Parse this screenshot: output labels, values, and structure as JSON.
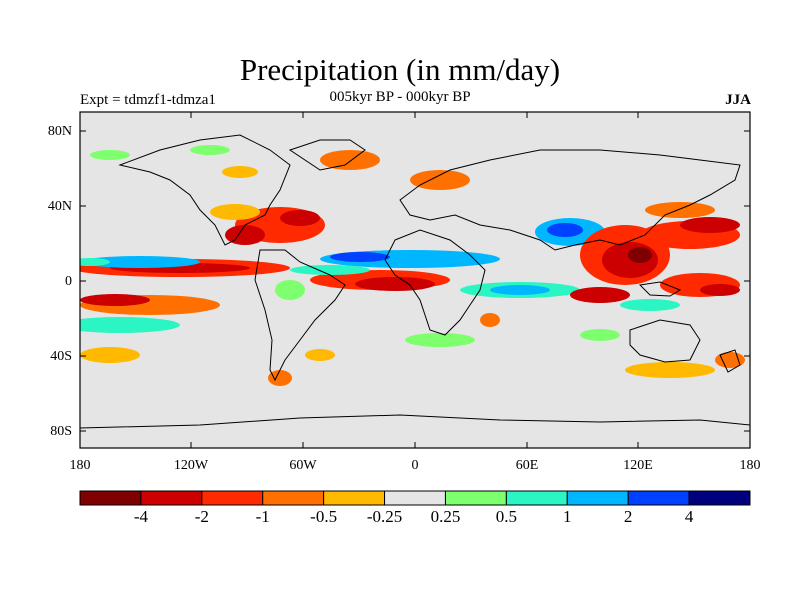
{
  "header": {
    "title": "Precipitation (in mm/day)",
    "subtitle": "005kyr BP - 000kyr BP",
    "experiment": "Expt = tdmzf1-tdmza1",
    "season": "JJA"
  },
  "axes": {
    "lat_ticks": [
      "80N",
      "40N",
      "0",
      "40S",
      "80S"
    ],
    "lon_ticks": [
      "180",
      "120W",
      "60W",
      "0",
      "60E",
      "120E",
      "180"
    ]
  },
  "colorbar": {
    "labels": [
      "-4",
      "-2",
      "-1",
      "-0.5",
      "-0.25",
      "0.25",
      "0.5",
      "1",
      "2",
      "4"
    ],
    "colors": [
      "#7f0000",
      "#cc0000",
      "#ff2a00",
      "#ff7000",
      "#ffb900",
      "#e5e5e5",
      "#7dff6e",
      "#2cf5c4",
      "#00b7ff",
      "#0040ff",
      "#00007f"
    ]
  },
  "colors": {
    "background": "#e5e5e5",
    "coast": "#000000"
  }
}
